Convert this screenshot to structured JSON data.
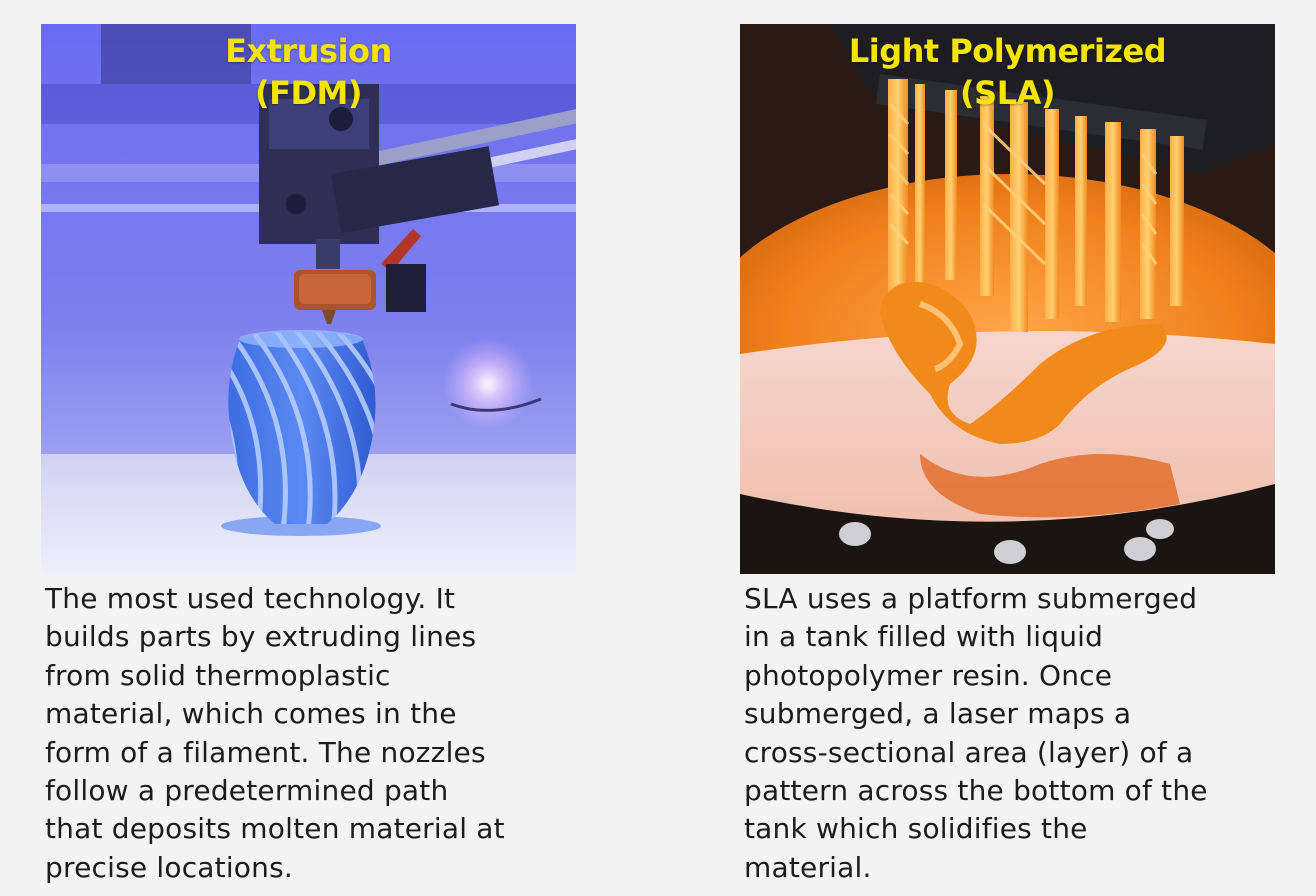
{
  "fdm": {
    "title_line1": "Extrusion",
    "title_line2": "(FDM)",
    "description_lines": [
      "The most used technology. It",
      "builds parts by extruding lines",
      "from solid thermoplastic",
      "material, which comes in the",
      "form of a filament. The nozzles",
      "follow a predetermined path",
      "that deposits molten material at",
      "precise locations."
    ]
  },
  "sla": {
    "title_line1": "Light Polymerized",
    "title_line2": "(SLA)",
    "description_lines": [
      "SLA uses a platform submerged",
      "in a tank filled with liquid",
      "photopolymer resin. Once",
      "submerged, a laser maps a",
      "cross-sectional area (layer) of a",
      "pattern across the bottom of the",
      "tank which solidifies the",
      "material."
    ]
  },
  "colors": {
    "title_yellow": "#f4e400",
    "page_background": "#f3f3f3",
    "body_text": "#1c1c1c",
    "fdm_tint": "#5a5ce8",
    "sla_resin": "#f28a1a"
  }
}
